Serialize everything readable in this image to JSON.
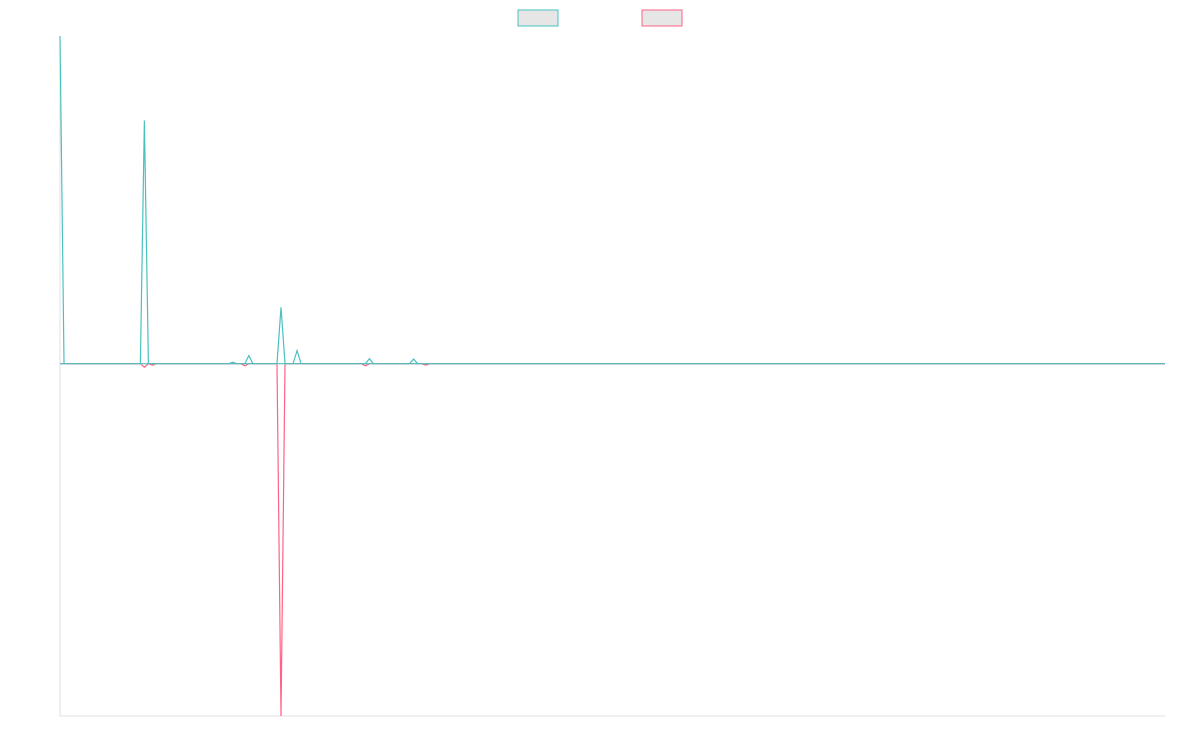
{
  "chart_data": {
    "type": "line",
    "title": "",
    "xlabel": "",
    "ylabel": "",
    "grid": false,
    "legend_placement": "top-center",
    "x_count": 276,
    "xlim": [
      0,
      275
    ],
    "ylim": [
      -1.0,
      0.93
    ],
    "zero_line": true,
    "series": [
      {
        "name": "",
        "color": "#4bc0c0",
        "fill": "#e6e6e6",
        "points": [
          [
            0,
            0.93
          ],
          [
            1,
            0.0
          ],
          [
            20,
            0.0
          ],
          [
            21,
            0.69
          ],
          [
            22,
            0.0
          ],
          [
            42,
            0.0
          ],
          [
            43,
            0.004
          ],
          [
            44,
            0.0
          ],
          [
            46,
            0.0
          ],
          [
            47,
            0.023
          ],
          [
            48,
            0.0
          ],
          [
            54,
            0.0
          ],
          [
            55,
            0.16
          ],
          [
            56,
            0.0
          ],
          [
            58,
            0.0
          ],
          [
            59,
            0.037
          ],
          [
            60,
            0.0
          ],
          [
            76,
            0.0
          ],
          [
            77,
            0.014
          ],
          [
            78,
            0.0
          ],
          [
            87,
            0.0
          ],
          [
            88,
            0.013
          ],
          [
            89,
            0.0
          ],
          [
            275,
            0.0
          ]
        ]
      },
      {
        "name": "",
        "color": "#ff6384",
        "fill": "#e6e6e6",
        "points": [
          [
            0,
            0.0
          ],
          [
            20,
            0.0
          ],
          [
            21,
            -0.01
          ],
          [
            22,
            0.0
          ],
          [
            23,
            -0.004
          ],
          [
            24,
            0.0
          ],
          [
            45,
            0.0
          ],
          [
            46,
            -0.006
          ],
          [
            47,
            0.0
          ],
          [
            54,
            0.0
          ],
          [
            55,
            -1.0
          ],
          [
            56,
            0.0
          ],
          [
            75,
            0.0
          ],
          [
            76,
            -0.006
          ],
          [
            77,
            0.0
          ],
          [
            90,
            0.0
          ],
          [
            91,
            -0.004
          ],
          [
            92,
            0.0
          ],
          [
            275,
            0.0
          ]
        ]
      }
    ]
  }
}
